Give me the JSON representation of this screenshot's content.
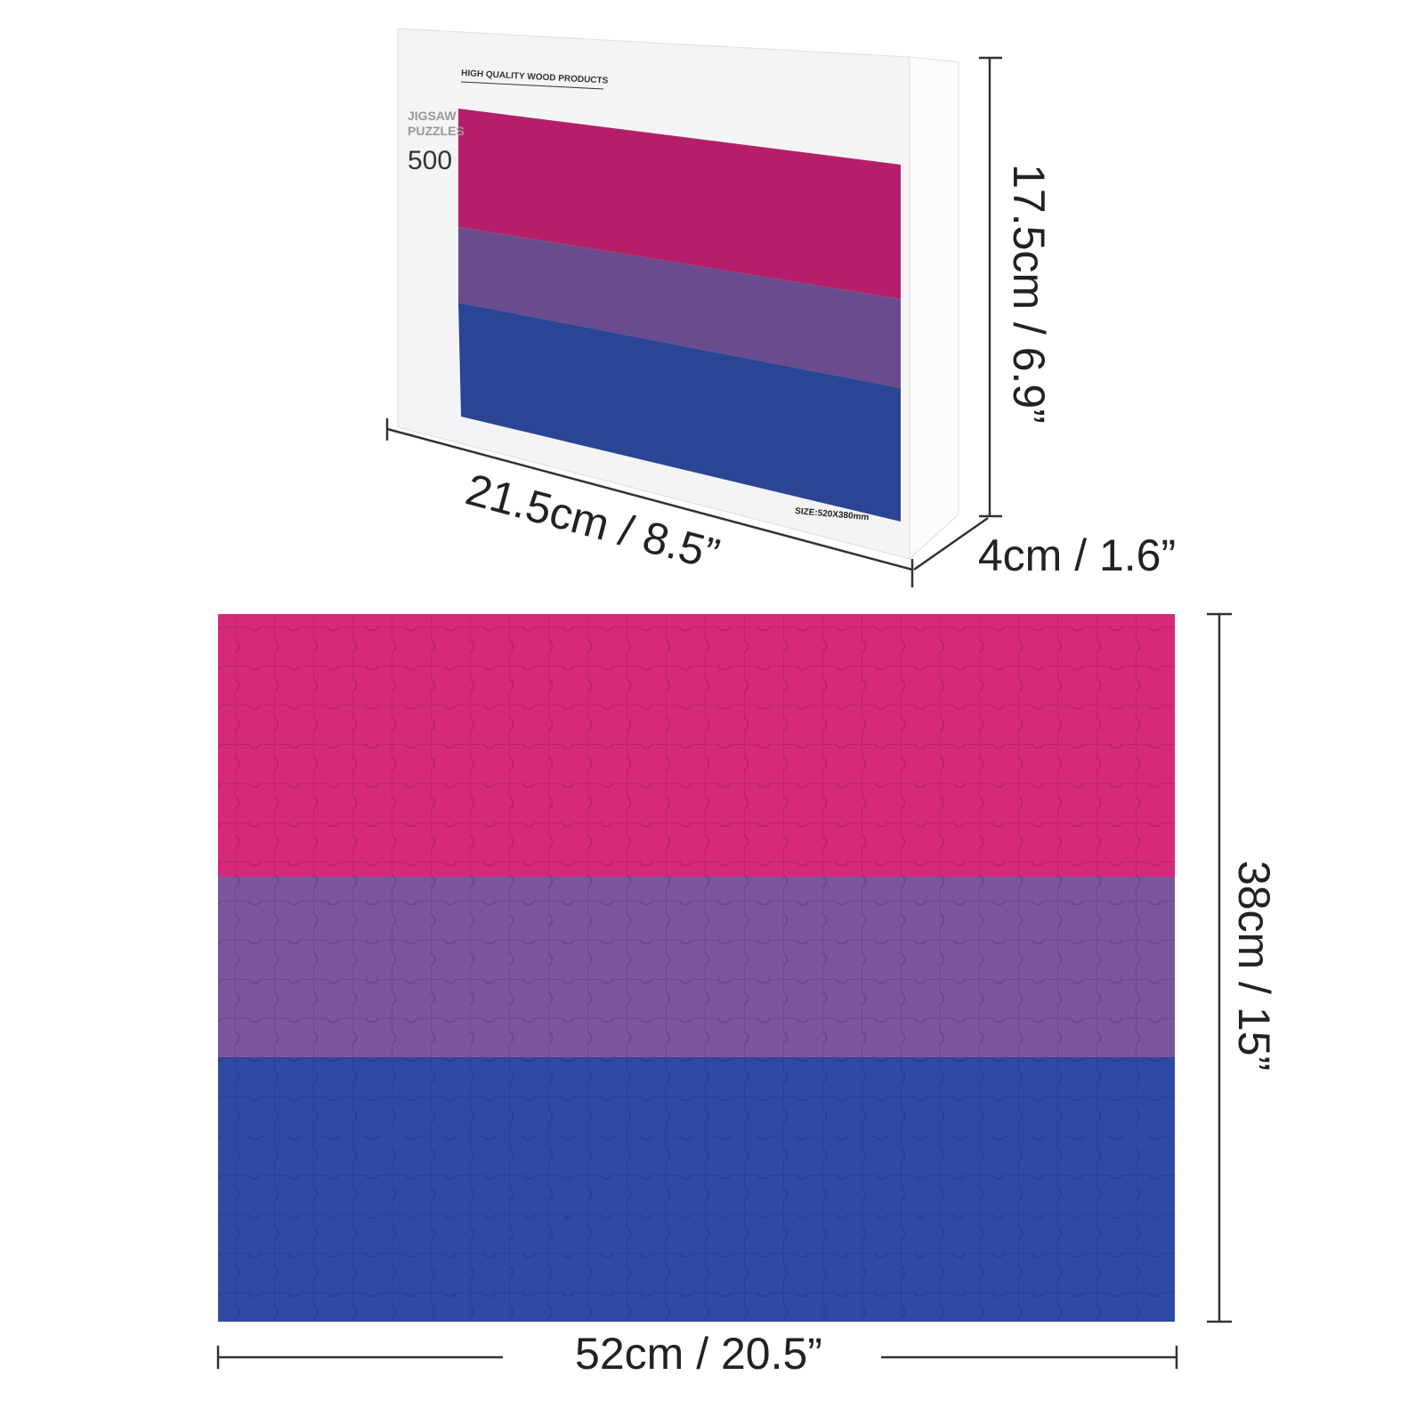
{
  "box": {
    "brand": "HIGH QUALITY WOOD PRODUCTS",
    "line1": "JIGSAW",
    "line2": "PUZZLES",
    "count": "500",
    "size": "SIZE:520X380mm"
  },
  "box_dimensions": {
    "width": "21.5cm / 8.5”",
    "height": "17.5cm / 6.9”",
    "depth": "4cm / 1.6”"
  },
  "puzzle_dimensions": {
    "height": "38cm / 15”",
    "width": "52cm / 20.5”"
  }
}
